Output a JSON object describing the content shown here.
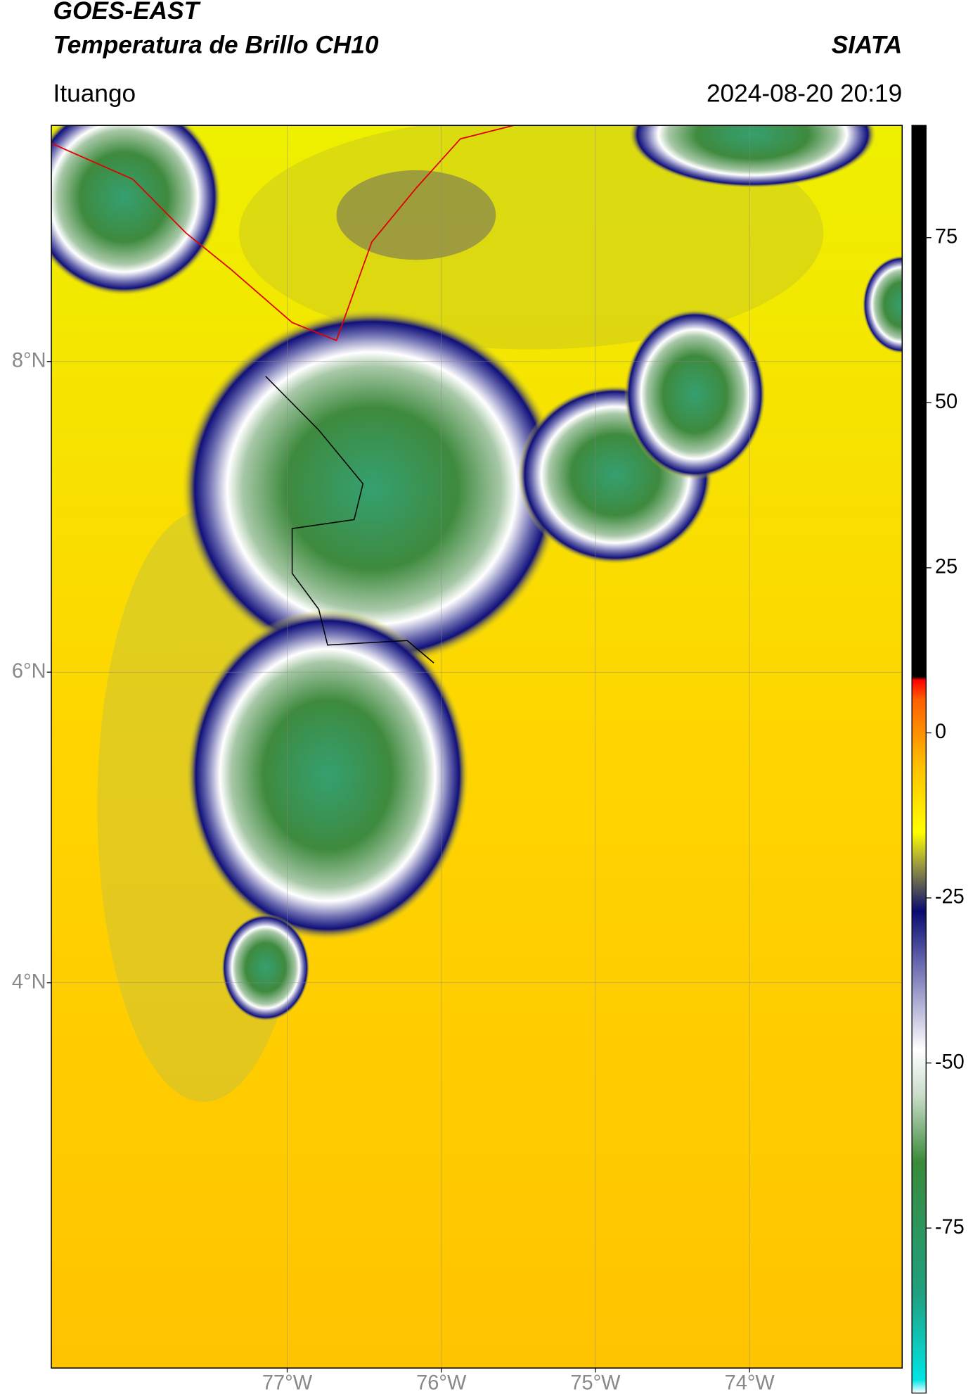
{
  "chart_data": {
    "type": "map",
    "title": "GOES-EAST",
    "subtitle": "Temperatura de Brillo CH10",
    "source": "SIATA",
    "location": "Ituango",
    "date": "2024-08-20 20:19",
    "xlim": [
      -78.53,
      -73.01
    ],
    "ylim": [
      1.52,
      9.52
    ],
    "xticks": [
      {
        "value": -77,
        "label": "77°W"
      },
      {
        "value": -76,
        "label": "76°W"
      },
      {
        "value": -75,
        "label": "75°W"
      },
      {
        "value": -74,
        "label": "74°W"
      }
    ],
    "yticks": [
      {
        "value": 4,
        "label": "4°N"
      },
      {
        "value": 6,
        "label": "6°N"
      },
      {
        "value": 8,
        "label": "8°N"
      }
    ],
    "grid": true,
    "clim": [
      -100,
      92
    ],
    "cticks": [
      -75,
      -50,
      -25,
      0,
      25,
      50,
      75
    ],
    "colormap": [
      [
        -100,
        "#ffffff"
      ],
      [
        -98,
        "#00e5e5"
      ],
      [
        -85,
        "#20a080"
      ],
      [
        -65,
        "#3a8a3a"
      ],
      [
        -55,
        "#c8dcc8"
      ],
      [
        -48,
        "#ffffff"
      ],
      [
        -35,
        "#6a6ab0"
      ],
      [
        -27,
        "#0a0a70"
      ],
      [
        -20,
        "#9a9a40"
      ],
      [
        -15,
        "#ffff00"
      ],
      [
        -5,
        "#ffc000"
      ],
      [
        5,
        "#ff6000"
      ],
      [
        8,
        "#ff0000"
      ],
      [
        8.5,
        "#000000"
      ],
      [
        92,
        "#000000"
      ]
    ]
  }
}
